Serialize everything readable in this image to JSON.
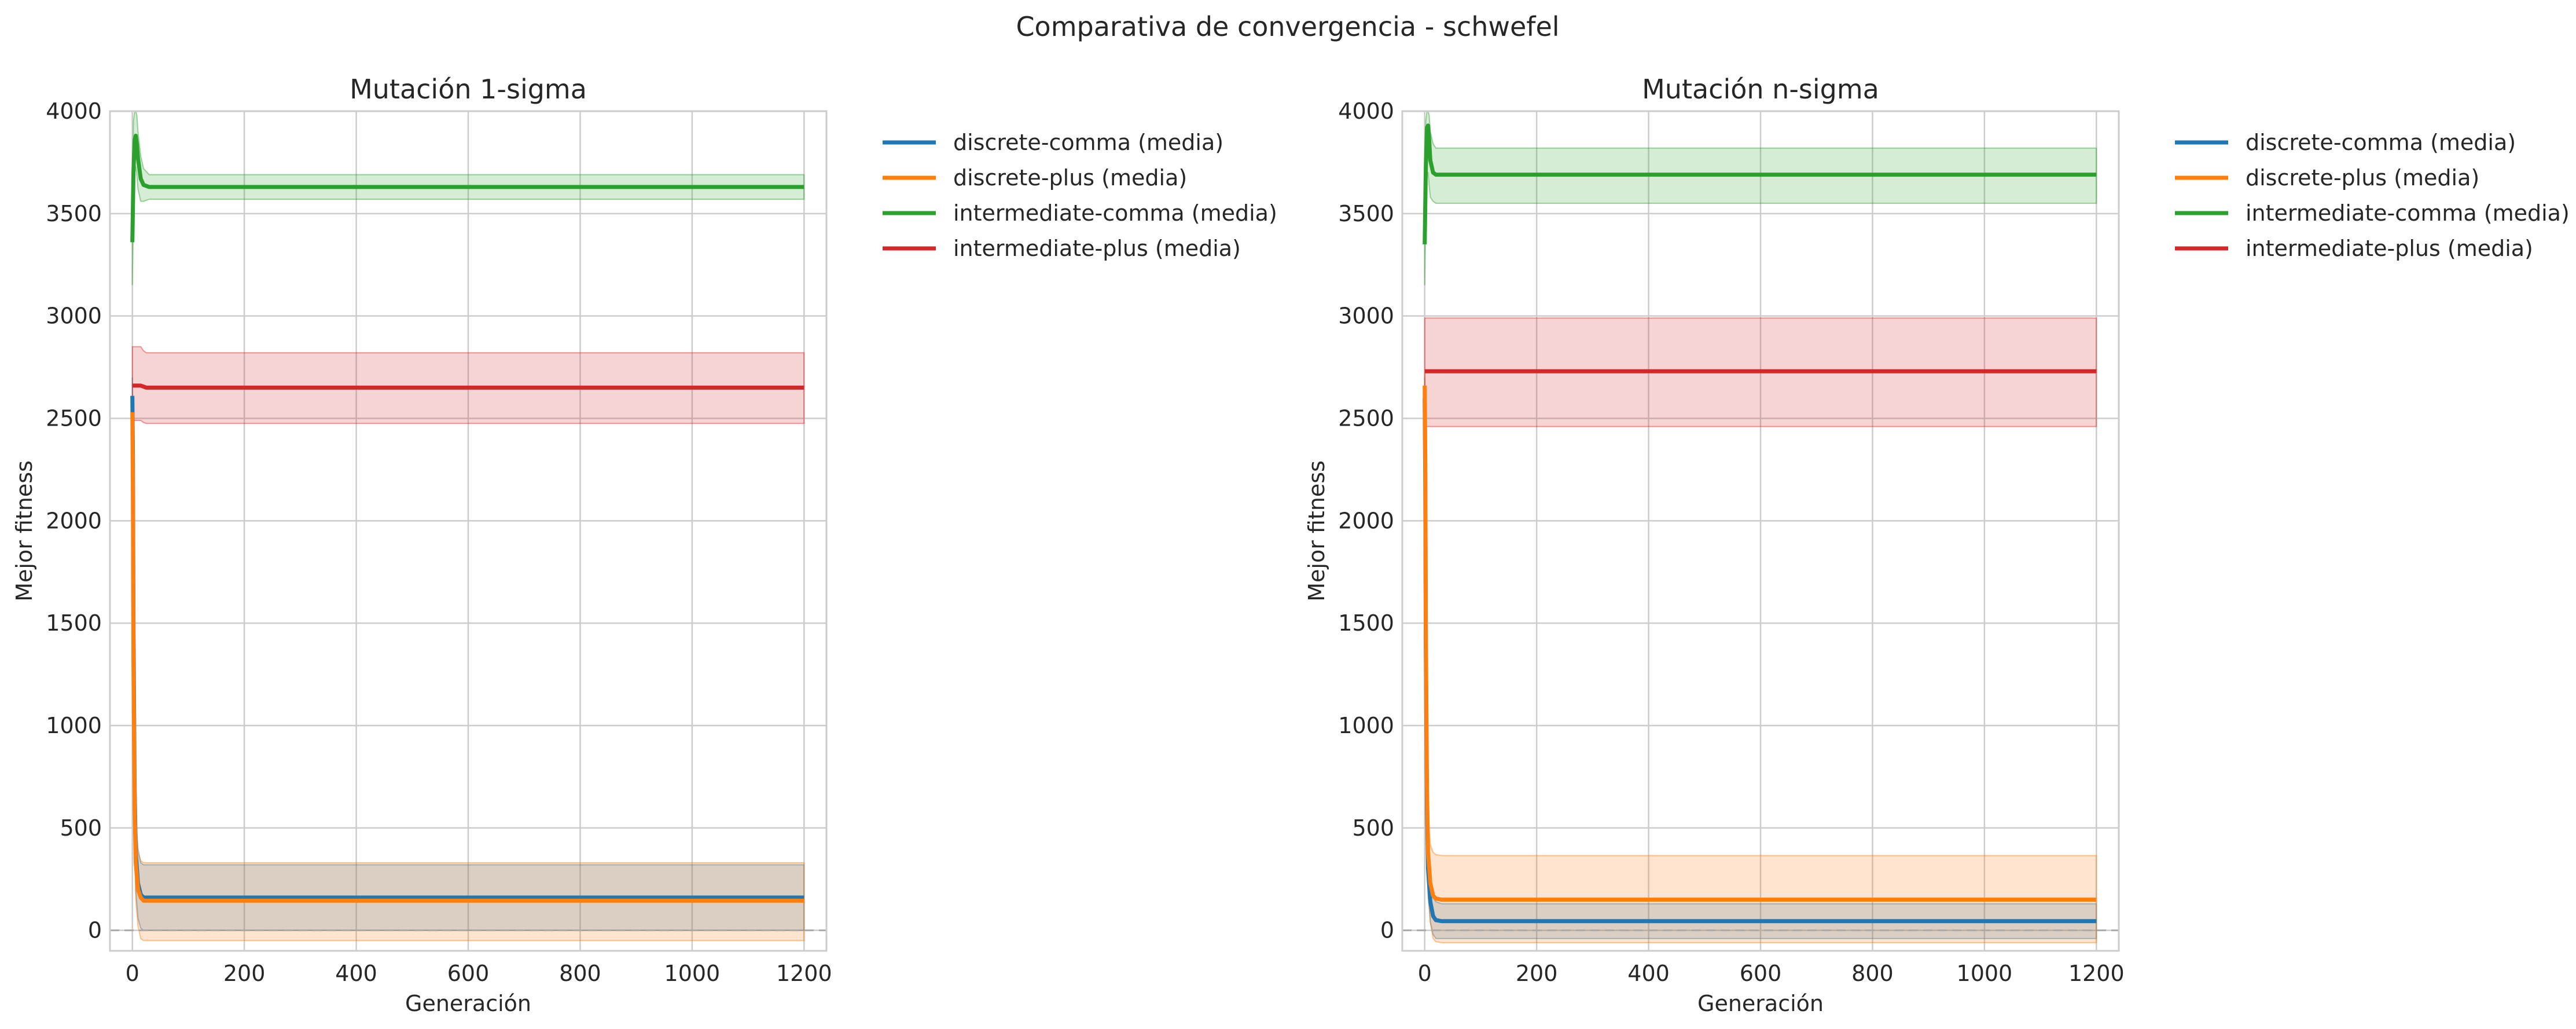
{
  "figure": {
    "suptitle": "Comparativa de convergencia - schwefel"
  },
  "chart_data": [
    {
      "type": "line",
      "title": "Mutación 1-sigma",
      "xlabel": "Generación",
      "ylabel": "Mejor fitness",
      "xlim": [
        -40,
        1240
      ],
      "ylim": [
        -100,
        4000
      ],
      "xticks": [
        0,
        200,
        400,
        600,
        800,
        1000,
        1200
      ],
      "yticks": [
        0,
        500,
        1000,
        1500,
        2000,
        2500,
        3000,
        3500,
        4000
      ],
      "grid": true,
      "legend_position": "outside-right-top",
      "reference_line": {
        "y": 0,
        "style": "dashed"
      },
      "series": [
        {
          "name": "discrete-comma (media)",
          "color": "#1f77b4",
          "x": [
            0,
            1,
            2,
            4,
            6,
            10,
            15,
            20,
            30,
            1200
          ],
          "y": [
            2610,
            2300,
            1500,
            700,
            380,
            230,
            175,
            160,
            160,
            160
          ],
          "lower": [
            2520,
            2100,
            1250,
            500,
            200,
            60,
            10,
            0,
            0,
            0
          ],
          "upper": [
            2700,
            2500,
            1750,
            900,
            560,
            400,
            330,
            320,
            320,
            320
          ]
        },
        {
          "name": "discrete-plus (media)",
          "color": "#ff7f0e",
          "x": [
            0,
            1,
            2,
            4,
            6,
            10,
            15,
            20,
            30,
            1200
          ],
          "y": [
            2530,
            2100,
            1300,
            600,
            330,
            200,
            160,
            145,
            145,
            145
          ],
          "lower": [
            2470,
            1900,
            1100,
            400,
            150,
            20,
            -40,
            -50,
            -50,
            -50
          ],
          "upper": [
            2590,
            2300,
            1500,
            800,
            510,
            380,
            340,
            330,
            330,
            330
          ]
        },
        {
          "name": "intermediate-comma (media)",
          "color": "#2ca02c",
          "x": [
            0,
            2,
            4,
            6,
            8,
            10,
            15,
            20,
            30,
            1200
          ],
          "y": [
            3360,
            3700,
            3860,
            3880,
            3840,
            3770,
            3670,
            3640,
            3630,
            3630
          ],
          "lower": [
            3150,
            3500,
            3700,
            3730,
            3690,
            3620,
            3560,
            3560,
            3570,
            3570
          ],
          "upper": [
            3550,
            3950,
            4000,
            4000,
            3980,
            3900,
            3780,
            3720,
            3690,
            3690
          ]
        },
        {
          "name": "intermediate-plus (media)",
          "color": "#d62728",
          "x": [
            0,
            5,
            10,
            15,
            20,
            25,
            30,
            1200
          ],
          "y": [
            2660,
            2660,
            2660,
            2660,
            2655,
            2650,
            2650,
            2650
          ],
          "lower": [
            2490,
            2490,
            2490,
            2490,
            2480,
            2475,
            2475,
            2475
          ],
          "upper": [
            2850,
            2850,
            2850,
            2850,
            2830,
            2820,
            2820,
            2820
          ]
        }
      ]
    },
    {
      "type": "line",
      "title": "Mutación n-sigma",
      "xlabel": "Generación",
      "ylabel": "Mejor fitness",
      "xlim": [
        -40,
        1240
      ],
      "ylim": [
        -100,
        4000
      ],
      "xticks": [
        0,
        200,
        400,
        600,
        800,
        1000,
        1200
      ],
      "yticks": [
        0,
        500,
        1000,
        1500,
        2000,
        2500,
        3000,
        3500,
        4000
      ],
      "grid": true,
      "legend_position": "outside-right-top",
      "reference_line": {
        "y": 0,
        "style": "dashed"
      },
      "series": [
        {
          "name": "discrete-comma (media)",
          "color": "#1f77b4",
          "x": [
            0,
            1,
            2,
            4,
            6,
            10,
            15,
            20,
            30,
            1200
          ],
          "y": [
            2600,
            2200,
            1400,
            600,
            300,
            140,
            70,
            50,
            45,
            45
          ],
          "lower": [
            2500,
            2000,
            1200,
            450,
            180,
            40,
            -20,
            -40,
            -40,
            -40
          ],
          "upper": [
            2700,
            2400,
            1600,
            750,
            420,
            240,
            160,
            140,
            130,
            130
          ]
        },
        {
          "name": "discrete-plus (media)",
          "color": "#ff7f0e",
          "x": [
            0,
            1,
            2,
            4,
            6,
            10,
            15,
            20,
            30,
            1200
          ],
          "y": [
            2660,
            2300,
            1500,
            700,
            380,
            230,
            170,
            155,
            150,
            150
          ],
          "lower": [
            2600,
            2100,
            1300,
            500,
            200,
            40,
            -40,
            -55,
            -60,
            -60
          ],
          "upper": [
            2720,
            2500,
            1700,
            900,
            560,
            420,
            380,
            370,
            365,
            365
          ]
        },
        {
          "name": "intermediate-comma (media)",
          "color": "#2ca02c",
          "x": [
            0,
            2,
            4,
            6,
            8,
            10,
            15,
            20,
            30,
            1200
          ],
          "y": [
            3350,
            3720,
            3920,
            3930,
            3860,
            3760,
            3700,
            3690,
            3690,
            3690
          ],
          "lower": [
            3150,
            3500,
            3700,
            3700,
            3640,
            3580,
            3560,
            3550,
            3550,
            3550
          ],
          "upper": [
            3550,
            3950,
            4000,
            4000,
            3980,
            3900,
            3840,
            3820,
            3820,
            3820
          ]
        },
        {
          "name": "intermediate-plus (media)",
          "color": "#d62728",
          "x": [
            0,
            5,
            10,
            20,
            30,
            1200
          ],
          "y": [
            2730,
            2730,
            2730,
            2730,
            2730,
            2730
          ],
          "lower": [
            2460,
            2460,
            2460,
            2460,
            2460,
            2460
          ],
          "upper": [
            2990,
            2990,
            2990,
            2990,
            2990,
            2990
          ]
        }
      ]
    }
  ]
}
